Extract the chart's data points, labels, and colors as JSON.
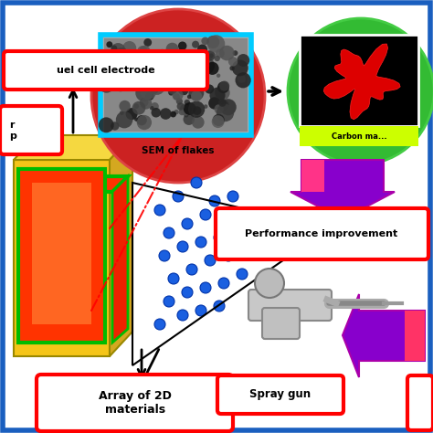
{
  "bg_color": "#ffffff",
  "border_color": "#1a5fbf",
  "labels": {
    "fuel_cell": "fuel cell electrode",
    "layer_text": "r\np",
    "array_2d": "Array of 2D\nmaterials",
    "sem": "SEM of flakes",
    "carbon": "Carbon ma...",
    "spray_gun": "Spray gun",
    "performance": "Performance improvement"
  },
  "red_box_color": "#ff0000",
  "box_fill": "#ffffff",
  "blue_dot_color": "#1a5fe0",
  "sem_circle_color": "#cc3333",
  "carbon_circle_color": "#44bb44",
  "sem_border": "#00aaff",
  "carbon_text_bg": "#ccff00",
  "dashed_line_color": "#ff0000"
}
